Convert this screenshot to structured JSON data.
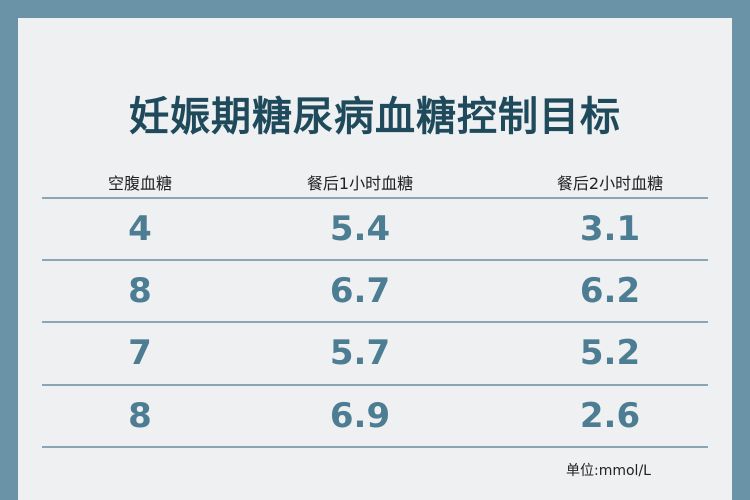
{
  "header": {
    "title": "妊娠期糖尿病血糖控制目标"
  },
  "table": {
    "columns": [
      "空腹血糖",
      "餐后1小时血糖",
      "餐后2小时血糖"
    ],
    "rows": [
      [
        "4",
        "5.4",
        "3.1"
      ],
      [
        "8",
        "6.7",
        "6.2"
      ],
      [
        "7",
        "5.7",
        "5.2"
      ],
      [
        "8",
        "6.9",
        "2.6"
      ]
    ]
  },
  "footer": {
    "unit": "单位:mmol/L"
  }
}
